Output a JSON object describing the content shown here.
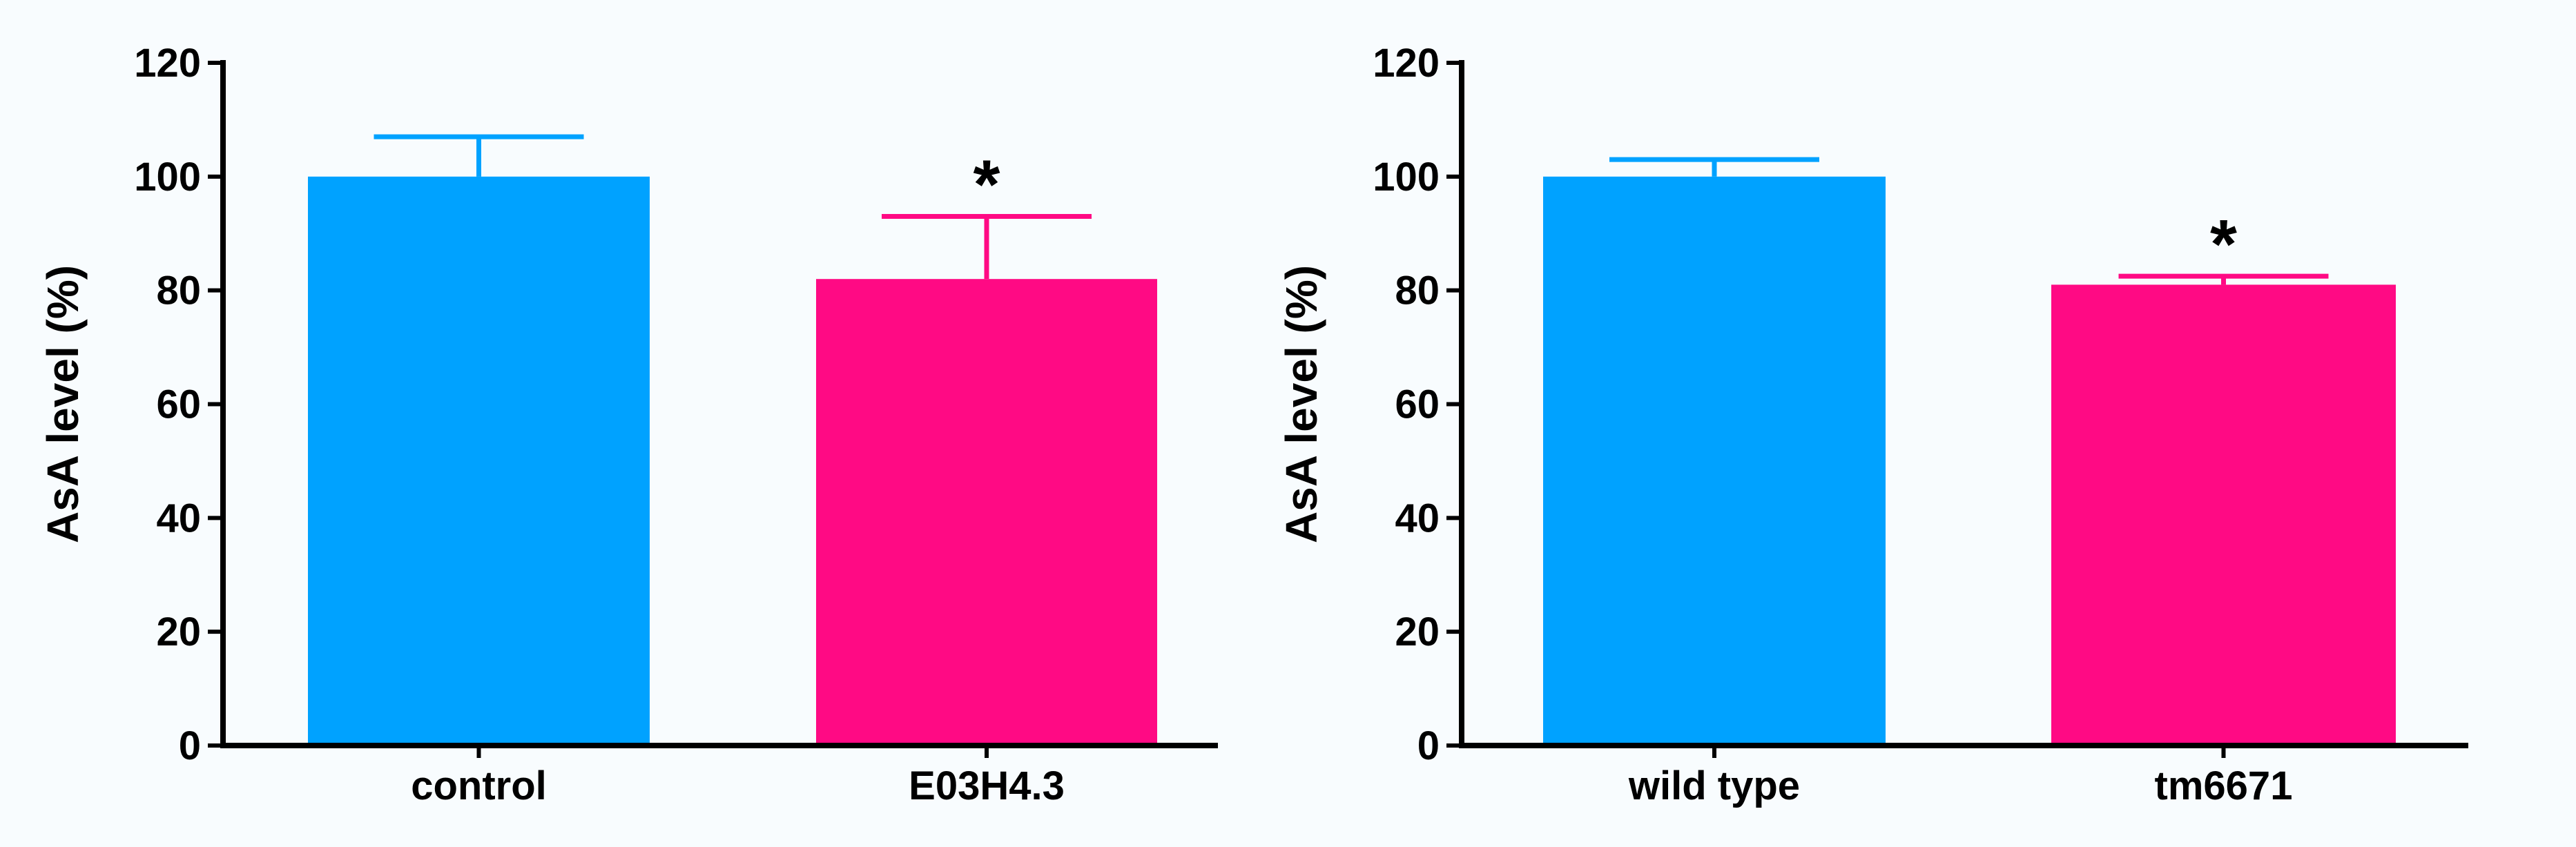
{
  "chart_data": [
    {
      "type": "bar",
      "categories": [
        "control",
        "E03H4.3"
      ],
      "values": [
        100,
        82
      ],
      "error_bars": [
        7,
        11
      ],
      "significance": [
        "",
        "*"
      ],
      "ylabel": "AsA level (%)",
      "ylim": [
        0,
        120
      ],
      "yticks": [
        0,
        20,
        40,
        60,
        80,
        100,
        120
      ],
      "colors": [
        "#00a2ff",
        "#ff0a84"
      ],
      "grid": false
    },
    {
      "type": "bar",
      "categories": [
        "wild type",
        "tm6671"
      ],
      "values": [
        100,
        81
      ],
      "error_bars": [
        3,
        1.5
      ],
      "significance": [
        "",
        "*"
      ],
      "ylabel": "AsA level (%)",
      "ylim": [
        0,
        120
      ],
      "yticks": [
        0,
        20,
        40,
        60,
        80,
        100,
        120
      ],
      "colors": [
        "#00a2ff",
        "#ff0a84"
      ],
      "grid": false
    }
  ]
}
